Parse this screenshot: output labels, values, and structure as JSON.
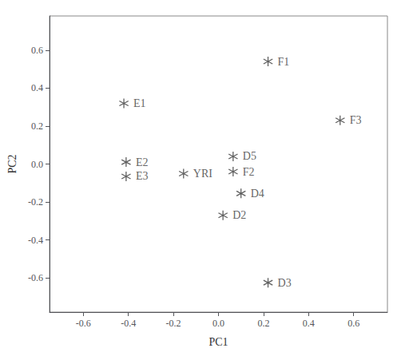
{
  "chart_data": {
    "type": "scatter",
    "x": [
      0.22,
      0.54,
      -0.42,
      -0.41,
      -0.41,
      -0.155,
      0.065,
      0.065,
      0.1,
      0.02,
      0.22
    ],
    "values": [
      0.54,
      0.23,
      0.32,
      0.01,
      -0.065,
      -0.05,
      0.04,
      -0.04,
      -0.155,
      -0.27,
      -0.625
    ],
    "labels": [
      "F1",
      "F3",
      "E1",
      "E2",
      "E3",
      "YRI",
      "D5",
      "F2",
      "D4",
      "D2",
      "D3"
    ],
    "xlabel": "PC1",
    "ylabel": "PC2",
    "xlim": [
      -0.75,
      0.75
    ],
    "ylim": [
      -0.78,
      0.78
    ],
    "xticks": [
      -0.6,
      -0.4,
      -0.2,
      {
        "value": 0,
        "label": "0.0"
      },
      0.2,
      0.4,
      0.6
    ],
    "yticks": [
      -0.6,
      -0.4,
      -0.2,
      {
        "value": 0,
        "label": "0.0"
      },
      0.2,
      0.4,
      0.6
    ],
    "marker": "asterisk",
    "color": "#3a3a3a",
    "grid": false
  }
}
